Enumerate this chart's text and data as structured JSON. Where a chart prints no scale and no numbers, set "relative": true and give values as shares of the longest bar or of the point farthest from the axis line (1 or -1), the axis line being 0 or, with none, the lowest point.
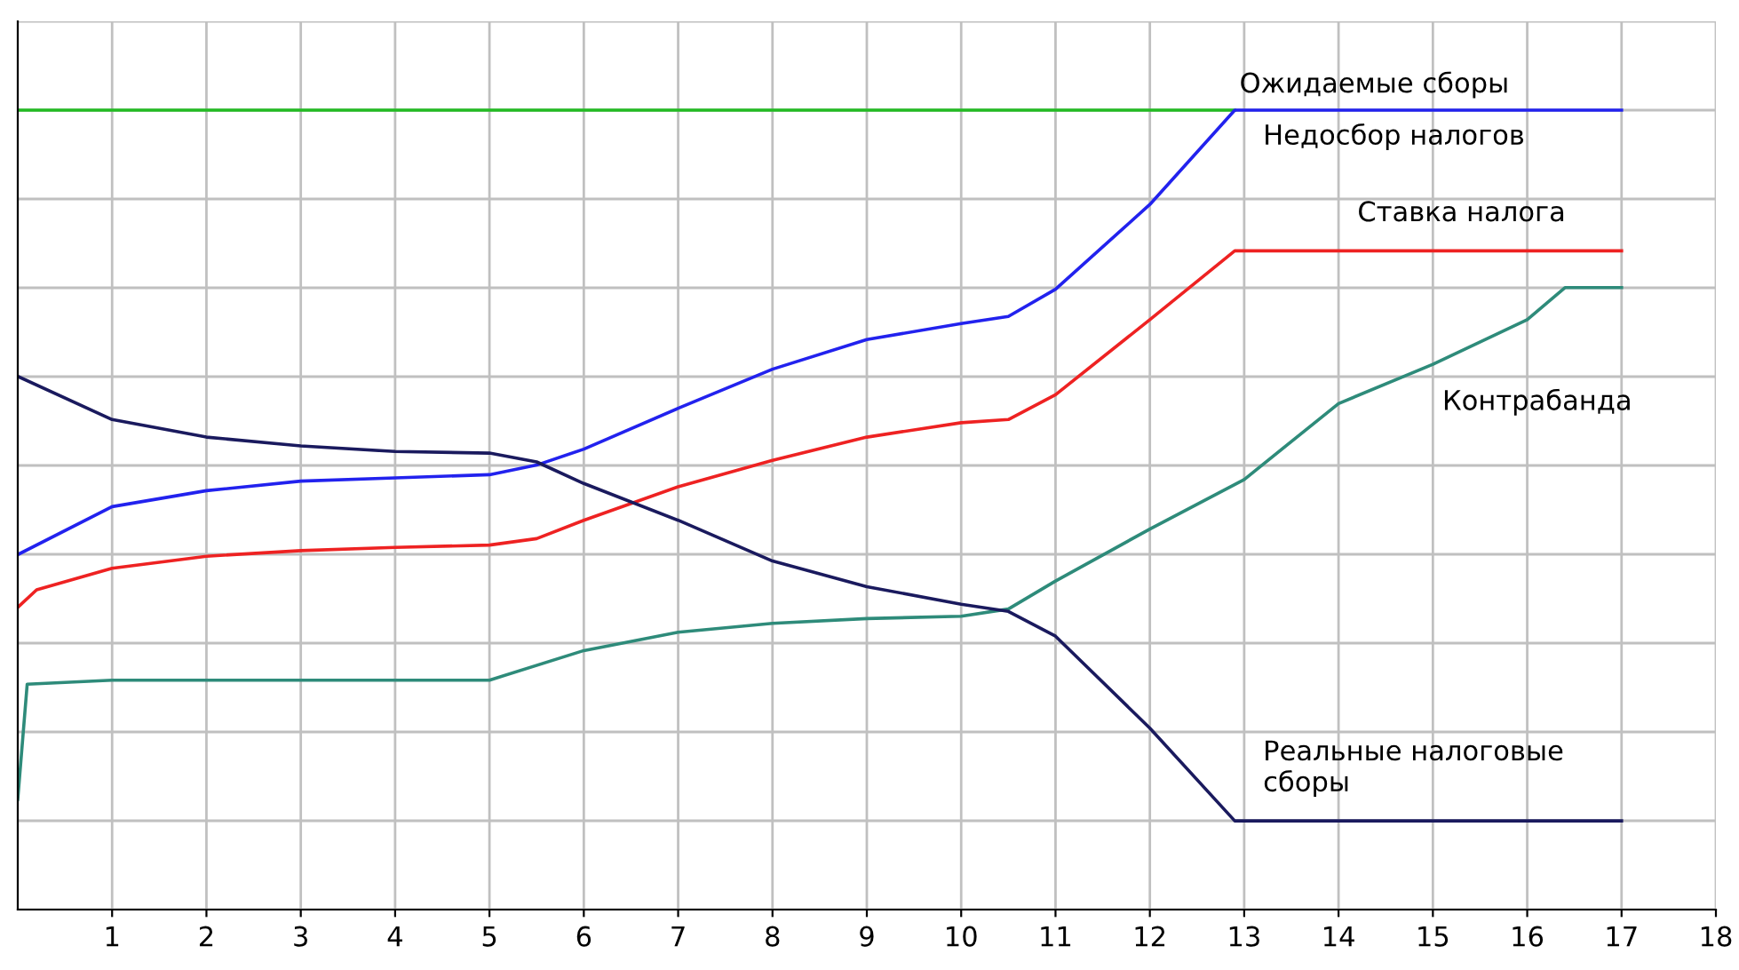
{
  "chart_data": {
    "type": "line",
    "relative": true,
    "xlim": [
      0,
      18
    ],
    "xticks": [
      1,
      2,
      3,
      4,
      5,
      6,
      7,
      8,
      9,
      10,
      11,
      12,
      13,
      14,
      15,
      16,
      17,
      18
    ],
    "grid": true,
    "tick_labels": "x",
    "series": [
      {
        "name": "Ожидаемые сборы",
        "color": "#22bb22",
        "x": [
          0,
          12.9
        ],
        "values": [
          1,
          1
        ]
      },
      {
        "name": "Недосбор налогов",
        "color": "#2222ee",
        "x": [
          0,
          1,
          2,
          3,
          4,
          5,
          5.5,
          6,
          7,
          8,
          9,
          10,
          10.5,
          11,
          12,
          12.9,
          17
        ],
        "values": [
          0.444,
          0.504,
          0.524,
          0.536,
          0.54,
          0.544,
          0.556,
          0.576,
          0.627,
          0.676,
          0.713,
          0.733,
          0.742,
          0.776,
          0.882,
          1,
          1
        ]
      },
      {
        "name": "Ставка налога",
        "color": "#ee2222",
        "x": [
          0,
          0.2,
          1,
          2,
          3,
          4,
          5,
          5.5,
          6,
          7,
          8,
          9,
          10,
          10.5,
          11,
          12,
          12.9,
          17
        ],
        "values": [
          0.378,
          0.4,
          0.427,
          0.442,
          0.449,
          0.453,
          0.456,
          0.464,
          0.487,
          0.529,
          0.562,
          0.591,
          0.609,
          0.613,
          0.644,
          0.738,
          0.824,
          0.824
        ]
      },
      {
        "name": "Контрабанда",
        "color": "#2e8b7a",
        "x": [
          0,
          0.1,
          1,
          5,
          6,
          7,
          8,
          9,
          10,
          10.5,
          11,
          12,
          13,
          14,
          15,
          16,
          16.4,
          17
        ],
        "values": [
          0.138,
          0.282,
          0.287,
          0.287,
          0.324,
          0.347,
          0.358,
          0.364,
          0.367,
          0.376,
          0.411,
          0.476,
          0.538,
          0.633,
          0.682,
          0.738,
          0.778,
          0.778
        ]
      },
      {
        "name": "Реальные налоговые\nсборы",
        "color": "#1a1a5e",
        "x": [
          0,
          1,
          2,
          3,
          4,
          5,
          5.5,
          6,
          7,
          8,
          9,
          10,
          10.5,
          11,
          12,
          12.9,
          17
        ],
        "values": [
          0.667,
          0.613,
          0.591,
          0.58,
          0.573,
          0.571,
          0.56,
          0.533,
          0.487,
          0.436,
          0.404,
          0.382,
          0.373,
          0.342,
          0.227,
          0.111,
          0.111
        ]
      }
    ]
  }
}
